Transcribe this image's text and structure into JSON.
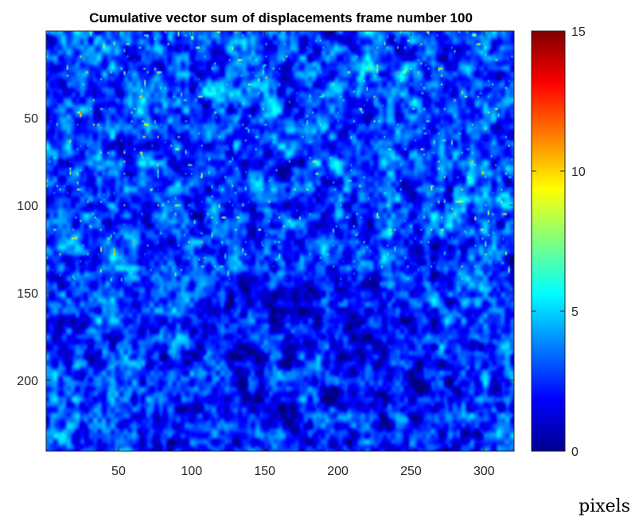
{
  "chart_data": {
    "type": "heatmap",
    "title": "Cumulative vector sum of displacements  frame number 100",
    "xlabel": "",
    "ylabel": "",
    "unit_label": "pixels",
    "colormap": "jet",
    "xlim": [
      1,
      320
    ],
    "ylim": [
      1,
      240
    ],
    "y_direction": "reverse",
    "x_ticks": [
      50,
      100,
      150,
      200,
      250,
      300
    ],
    "y_ticks": [
      50,
      100,
      150,
      200
    ],
    "colorbar": {
      "clim": [
        0,
        15
      ],
      "ticks": [
        0,
        5,
        10,
        15
      ]
    },
    "summary": {
      "background_value": 3,
      "peak_value": 14,
      "low_region_center": [
        180,
        190
      ],
      "low_region_value": 1.5
    }
  }
}
